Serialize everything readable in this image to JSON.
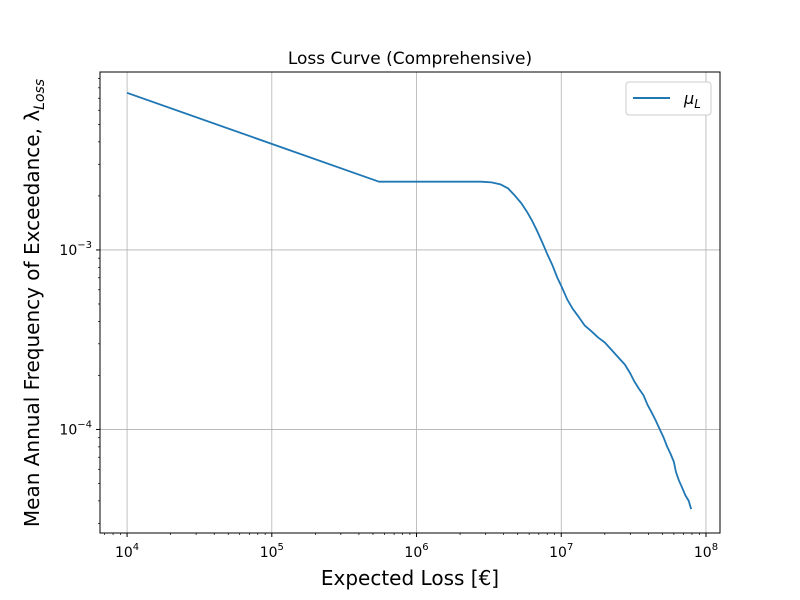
{
  "chart_data": {
    "type": "line",
    "title": "Loss Curve (Comprehensive)",
    "xlabel": "Expected Loss [€]",
    "ylabel_main": "Mean Annual Frequency of Exceedance, λ",
    "ylabel_sub": "Loss",
    "xscale": "log",
    "yscale": "log",
    "xlim": [
      6500,
      125000000
    ],
    "ylim": [
      2.65e-05,
      0.0098
    ],
    "grid": true,
    "legend_position": "top-right",
    "x_ticks": [
      {
        "value": 10000,
        "base": "10",
        "exp": "4"
      },
      {
        "value": 100000,
        "base": "10",
        "exp": "5"
      },
      {
        "value": 1000000,
        "base": "10",
        "exp": "6"
      },
      {
        "value": 10000000,
        "base": "10",
        "exp": "7"
      },
      {
        "value": 100000000,
        "base": "10",
        "exp": "8"
      }
    ],
    "y_ticks": [
      {
        "value": 0.0001,
        "base": "10",
        "exp": "−4"
      },
      {
        "value": 0.001,
        "base": "10",
        "exp": "−3"
      }
    ],
    "series": [
      {
        "name_main": "μ",
        "name_sub": "L",
        "color": "#1f77b4",
        "x": [
          10000,
          550000,
          1000000,
          2000000,
          2800000,
          3300000,
          3800000,
          4300000,
          4800000,
          5300000,
          5800000,
          6300000,
          6800000,
          7400000,
          8000000,
          8700000,
          9400000,
          10100000,
          11000000,
          12000000,
          13300000,
          14500000,
          16000000,
          18000000,
          20000000,
          22500000,
          25000000,
          27500000,
          30000000,
          32000000,
          34500000,
          37000000,
          39500000,
          42000000,
          45000000,
          48000000,
          51000000,
          54000000,
          57000000,
          60000000,
          62000000,
          65000000,
          68000000,
          72000000,
          76000000,
          79000000
        ],
        "y": [
          0.0075,
          0.0024,
          0.0024,
          0.0024,
          0.0024,
          0.00238,
          0.00232,
          0.0022,
          0.002,
          0.00182,
          0.00163,
          0.00145,
          0.00128,
          0.0011,
          0.00095,
          0.00082,
          0.0007,
          0.00062,
          0.00053,
          0.00047,
          0.00042,
          0.00038,
          0.000355,
          0.000325,
          0.000305,
          0.000275,
          0.00025,
          0.00023,
          0.000205,
          0.000185,
          0.000168,
          0.000155,
          0.000137,
          0.000125,
          0.000112,
          0.0001,
          9e-05,
          8e-05,
          7.3e-05,
          6.6e-05,
          5.8e-05,
          5.2e-05,
          4.8e-05,
          4.3e-05,
          4e-05,
          3.6e-05
        ]
      }
    ]
  }
}
